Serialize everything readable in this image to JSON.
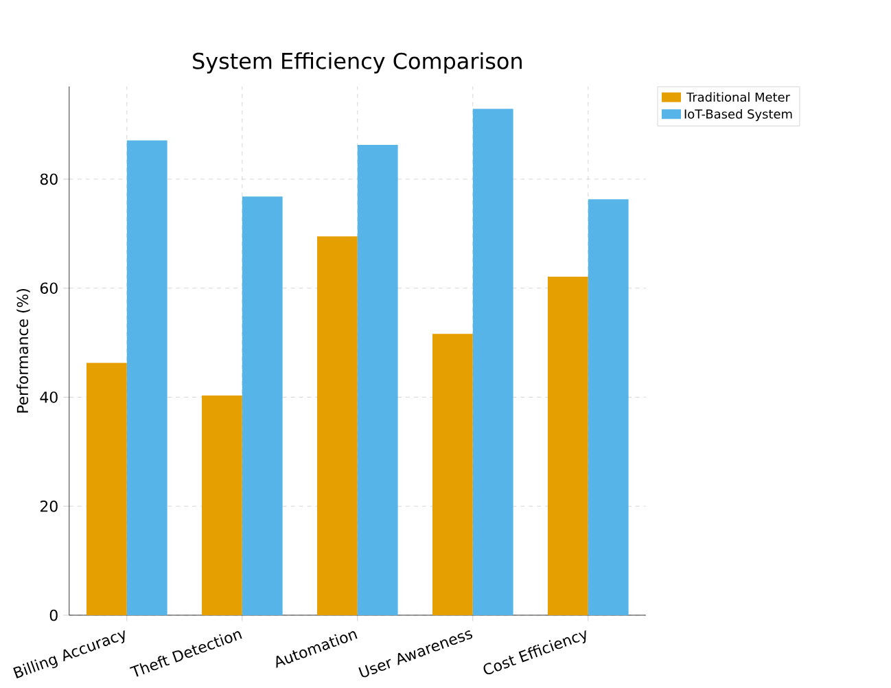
{
  "chart_data": {
    "type": "bar",
    "title": "System Efficiency Comparison",
    "ylabel": "Performance (%)",
    "categories": [
      "Billing Accuracy",
      "Theft Detection",
      "Automation",
      "User Awareness",
      "Cost Efficiency"
    ],
    "series": [
      {
        "name": "Traditional Meter",
        "color": "#e69f00",
        "values": [
          46.3,
          40.3,
          69.5,
          51.6,
          62.1
        ]
      },
      {
        "name": "IoT-Based System",
        "color": "#56b4e9",
        "values": [
          87.1,
          76.8,
          86.3,
          92.9,
          76.3
        ]
      }
    ],
    "ylim": [
      0,
      97
    ],
    "yticks": [
      0,
      20,
      40,
      60,
      80
    ],
    "grid": true,
    "legend": "right"
  }
}
